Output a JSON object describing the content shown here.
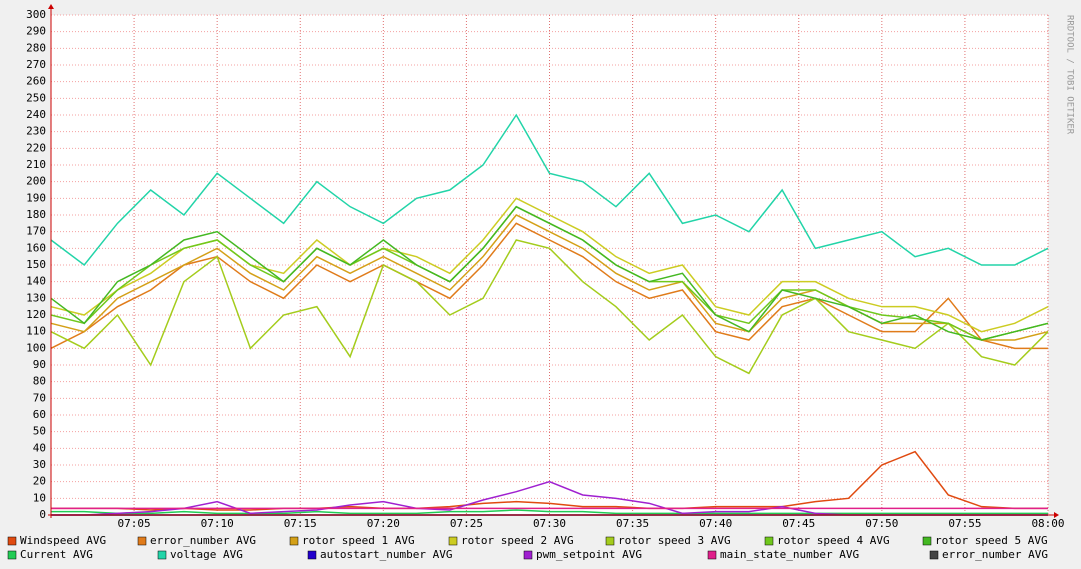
{
  "chart_data": {
    "type": "line",
    "watermark": "RRDTOOL / TOBI OETIKER",
    "x": [
      "07:00",
      "07:02",
      "07:04",
      "07:06",
      "07:08",
      "07:10",
      "07:12",
      "07:14",
      "07:16",
      "07:18",
      "07:20",
      "07:22",
      "07:24",
      "07:26",
      "07:28",
      "07:30",
      "07:32",
      "07:34",
      "07:36",
      "07:38",
      "07:40",
      "07:42",
      "07:44",
      "07:46",
      "07:48",
      "07:50",
      "07:52",
      "07:54",
      "07:56",
      "07:58",
      "08:00"
    ],
    "xlim": [
      "07:00",
      "08:00"
    ],
    "xticks": [
      "07:05",
      "07:10",
      "07:15",
      "07:20",
      "07:25",
      "07:30",
      "07:35",
      "07:40",
      "07:45",
      "07:50",
      "07:55",
      "08:00"
    ],
    "ylim": [
      0,
      300
    ],
    "yticks": [
      0,
      10,
      20,
      30,
      40,
      50,
      60,
      70,
      80,
      90,
      100,
      110,
      120,
      130,
      140,
      150,
      160,
      170,
      180,
      190,
      200,
      210,
      220,
      230,
      240,
      250,
      260,
      270,
      280,
      290,
      300
    ],
    "grid": true,
    "series": [
      {
        "name": "Windspeed AVG",
        "color": "#e04a10",
        "values": [
          4,
          4,
          4,
          3,
          4,
          3,
          3,
          4,
          4,
          5,
          4,
          4,
          5,
          7,
          8,
          7,
          5,
          5,
          4,
          4,
          5,
          5,
          5,
          8,
          10,
          30,
          38,
          12,
          5,
          4,
          4
        ]
      },
      {
        "name": "error_number AVG",
        "color": "#e07b1a",
        "values": [
          100,
          110,
          125,
          135,
          150,
          155,
          140,
          130,
          150,
          140,
          150,
          140,
          130,
          150,
          175,
          165,
          155,
          140,
          130,
          135,
          110,
          105,
          125,
          130,
          120,
          110,
          110,
          130,
          105,
          100,
          100
        ]
      },
      {
        "name": "rotor speed 1 AVG",
        "color": "#d4a017",
        "values": [
          115,
          110,
          130,
          140,
          150,
          160,
          145,
          135,
          155,
          145,
          155,
          145,
          135,
          155,
          180,
          170,
          160,
          145,
          135,
          140,
          115,
          110,
          130,
          135,
          125,
          115,
          115,
          115,
          105,
          105,
          110
        ]
      },
      {
        "name": "rotor speed 2 AVG",
        "color": "#cccc22",
        "values": [
          125,
          120,
          135,
          145,
          160,
          165,
          150,
          145,
          165,
          150,
          160,
          155,
          145,
          165,
          190,
          180,
          170,
          155,
          145,
          150,
          125,
          120,
          140,
          140,
          130,
          125,
          125,
          120,
          110,
          115,
          125
        ]
      },
      {
        "name": "rotor speed 3 AVG",
        "color": "#a4cc1c",
        "values": [
          110,
          100,
          120,
          90,
          140,
          155,
          100,
          120,
          125,
          95,
          150,
          140,
          120,
          130,
          165,
          160,
          140,
          125,
          105,
          120,
          95,
          85,
          120,
          130,
          110,
          105,
          100,
          115,
          95,
          90,
          110
        ]
      },
      {
        "name": "rotor speed 4 AVG",
        "color": "#70c81c",
        "values": [
          120,
          115,
          135,
          150,
          160,
          165,
          150,
          140,
          160,
          150,
          160,
          150,
          140,
          160,
          185,
          175,
          165,
          150,
          140,
          140,
          120,
          115,
          135,
          135,
          125,
          120,
          118,
          115,
          105,
          110,
          115
        ]
      },
      {
        "name": "rotor speed 5 AVG",
        "color": "#44b822",
        "values": [
          130,
          115,
          140,
          150,
          165,
          170,
          155,
          140,
          160,
          150,
          165,
          150,
          140,
          160,
          185,
          175,
          165,
          150,
          140,
          145,
          120,
          110,
          135,
          130,
          125,
          115,
          120,
          110,
          105,
          110,
          115
        ]
      },
      {
        "name": "Current AVG",
        "color": "#22cc55",
        "values": [
          2,
          2,
          1,
          1,
          2,
          1,
          1,
          1,
          2,
          1,
          1,
          1,
          2,
          2,
          3,
          2,
          2,
          1,
          1,
          1,
          1,
          1,
          1,
          1,
          1,
          1,
          1,
          1,
          1,
          1,
          1
        ]
      },
      {
        "name": "voltage AVG",
        "color": "#22d4a8",
        "values": [
          165,
          150,
          175,
          195,
          180,
          205,
          190,
          175,
          200,
          185,
          175,
          190,
          195,
          210,
          240,
          205,
          200,
          185,
          205,
          175,
          180,
          170,
          195,
          160,
          165,
          170,
          155,
          160,
          150,
          150,
          160
        ]
      },
      {
        "name": "autostart_number AVG",
        "color": "#2200cc",
        "values": [
          0,
          0,
          0,
          0,
          0,
          0,
          0,
          0,
          0,
          0,
          0,
          0,
          0,
          0,
          0,
          0,
          0,
          0,
          0,
          0,
          0,
          0,
          0,
          0,
          0,
          0,
          0,
          0,
          0,
          0,
          0
        ]
      },
      {
        "name": "pwm_setpoint AVG",
        "color": "#a020d0",
        "values": [
          0,
          0,
          1,
          2,
          4,
          8,
          1,
          2,
          3,
          6,
          8,
          4,
          3,
          9,
          14,
          20,
          12,
          10,
          7,
          1,
          2,
          2,
          5,
          1,
          0,
          0,
          0,
          0,
          0,
          0,
          0
        ]
      },
      {
        "name": "main_state_number AVG",
        "color": "#e0208a",
        "values": [
          4,
          4,
          4,
          4,
          4,
          4,
          4,
          4,
          4,
          4,
          4,
          4,
          4,
          4,
          4,
          4,
          4,
          4,
          4,
          4,
          4,
          4,
          4,
          4,
          4,
          4,
          4,
          4,
          4,
          4,
          4
        ]
      },
      {
        "name": "error_number AVG",
        "color": "#444444",
        "values": [
          0,
          0,
          0,
          0,
          0,
          0,
          0,
          0,
          0,
          0,
          0,
          0,
          0,
          0,
          0,
          0,
          0,
          0,
          0,
          0,
          0,
          0,
          0,
          0,
          0,
          0,
          0,
          0,
          0,
          0,
          0
        ]
      }
    ]
  }
}
